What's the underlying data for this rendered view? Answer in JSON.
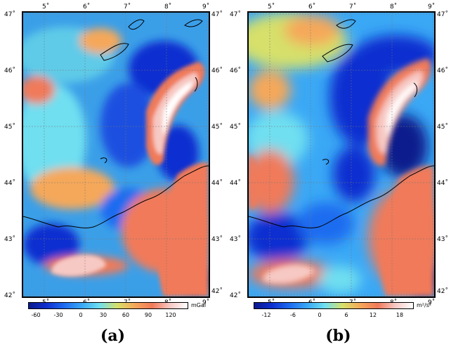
{
  "panels": [
    {
      "id": "a",
      "label": "(a)",
      "lon_ticks": [
        "5˚",
        "6˚",
        "7˚",
        "8˚",
        "9˚"
      ],
      "lat_ticks": [
        "47˚",
        "46˚",
        "45˚",
        "44˚",
        "43˚",
        "42˚"
      ],
      "colorbar": {
        "unit": "mGal",
        "ticks": [
          "-60",
          "-30",
          "0",
          "30",
          "60",
          "90",
          "120"
        ],
        "colors": [
          "#0b1a8c",
          "#0f2fd0",
          "#1e6cf0",
          "#3aa8f5",
          "#6fdff0",
          "#d6e06a",
          "#f5a85a",
          "#f07a5a",
          "#f7c9c4",
          "#ffffff"
        ]
      }
    },
    {
      "id": "b",
      "label": "(b)",
      "lon_ticks": [
        "5˚",
        "6˚",
        "7˚",
        "8˚",
        "9˚"
      ],
      "lat_ticks": [
        "47˚",
        "46˚",
        "45˚",
        "44˚",
        "43˚",
        "42˚"
      ],
      "colorbar": {
        "unit": "m²/s²",
        "ticks": [
          "-12",
          "-6",
          "0",
          "6",
          "12",
          "18"
        ],
        "colors": [
          "#0b1a8c",
          "#0f2fd0",
          "#1e6cf0",
          "#3aa8f5",
          "#6fdff0",
          "#d6e06a",
          "#f5a85a",
          "#f07a5a",
          "#f7c9c4",
          "#ffffff"
        ]
      }
    }
  ]
}
